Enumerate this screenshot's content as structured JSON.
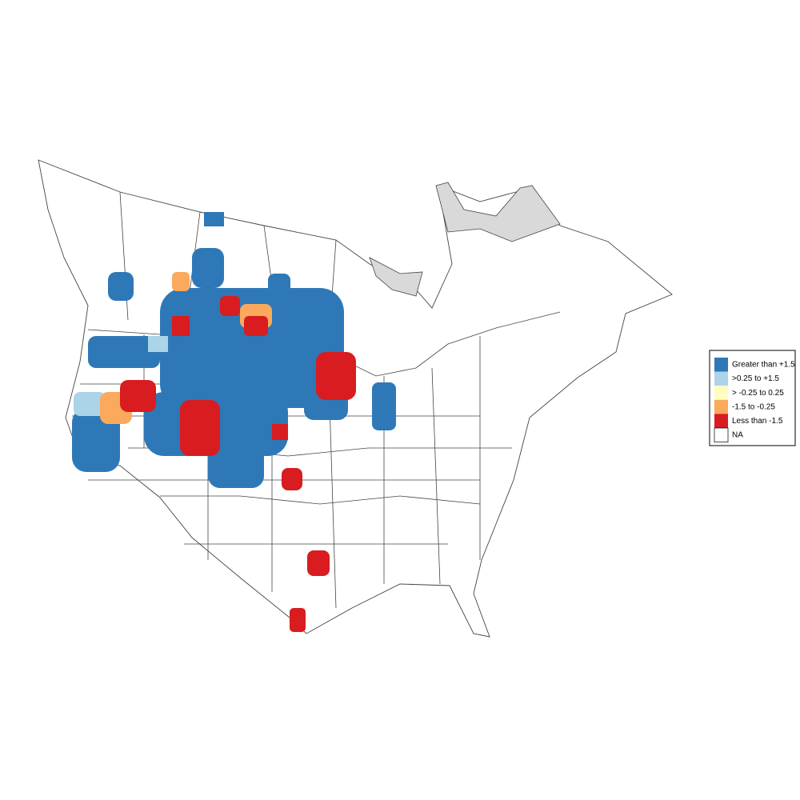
{
  "legend": {
    "items": [
      {
        "label": "Greater than +1.5",
        "color": "#2e78b8"
      },
      {
        "label": ">0.25 to +1.5",
        "color": "#abd4e8"
      },
      {
        "label": "> -0.25 to 0.25",
        "color": "#fefdbe"
      },
      {
        "label": "-1.5 to -0.25",
        "color": "#fba95c"
      },
      {
        "label": "Less than -1.5",
        "color": "#d81c1f"
      },
      {
        "label": "NA",
        "color": "#ffffff"
      }
    ]
  }
}
